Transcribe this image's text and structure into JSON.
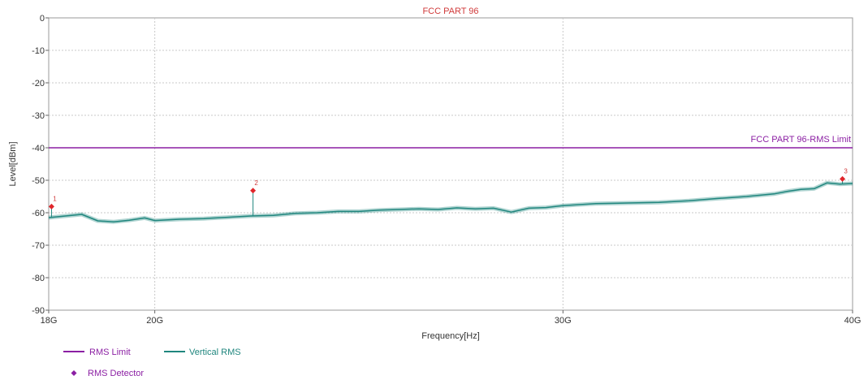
{
  "chart_data": {
    "type": "line",
    "title": "FCC PART 96",
    "xlabel": "Frequency[Hz]",
    "ylabel": "Level[dBm]",
    "xscale": "log",
    "xlim": [
      18,
      40
    ],
    "x_unit": "GHz",
    "ylim": [
      -90,
      0
    ],
    "x_ticks": [
      {
        "value": 18,
        "label": "18G"
      },
      {
        "value": 20,
        "label": "20G"
      },
      {
        "value": 30,
        "label": "30G"
      },
      {
        "value": 40,
        "label": "40G"
      }
    ],
    "y_ticks": [
      {
        "value": 0,
        "label": "0"
      },
      {
        "value": -10,
        "label": "-10"
      },
      {
        "value": -20,
        "label": "-20"
      },
      {
        "value": -30,
        "label": "-30"
      },
      {
        "value": -40,
        "label": "-40"
      },
      {
        "value": -50,
        "label": "-50"
      },
      {
        "value": -60,
        "label": "-60"
      },
      {
        "value": -70,
        "label": "-70"
      },
      {
        "value": -80,
        "label": "-80"
      },
      {
        "value": -90,
        "label": "-90"
      }
    ],
    "grid": true,
    "limit_line": {
      "value": -40,
      "label": "FCC PART 96-RMS Limit",
      "color": "#8b1fa3"
    },
    "series": [
      {
        "name": "Vertical RMS",
        "color": "#20867e",
        "x": [
          18.0,
          18.3,
          18.6,
          18.9,
          19.2,
          19.5,
          19.8,
          20.0,
          20.5,
          21.0,
          21.5,
          22.0,
          22.5,
          23.0,
          23.5,
          24.0,
          24.5,
          25.0,
          25.5,
          26.0,
          26.5,
          27.0,
          27.5,
          28.0,
          28.5,
          29.0,
          29.5,
          30.0,
          31.0,
          32.0,
          33.0,
          34.0,
          35.0,
          36.0,
          37.0,
          37.5,
          38.0,
          38.5,
          39.0,
          39.5,
          40.0
        ],
        "y": [
          -61.5,
          -61.0,
          -60.5,
          -62.5,
          -62.8,
          -62.3,
          -61.6,
          -62.4,
          -62.0,
          -61.8,
          -61.4,
          -61.0,
          -60.8,
          -60.2,
          -60.0,
          -59.6,
          -59.6,
          -59.2,
          -59.0,
          -58.8,
          -59.0,
          -58.5,
          -58.8,
          -58.6,
          -59.8,
          -58.6,
          -58.4,
          -57.8,
          -57.2,
          -57.0,
          -56.8,
          -56.3,
          -55.6,
          -55.0,
          -54.2,
          -53.4,
          -52.8,
          -52.6,
          -50.8,
          -51.2,
          -51.0
        ]
      }
    ],
    "markers": [
      {
        "label": "1",
        "x": 18.05,
        "y": -58.1
      },
      {
        "label": "2",
        "x": 22.05,
        "y": -53.2
      },
      {
        "label": "3",
        "x": 39.6,
        "y": -49.6
      }
    ],
    "legend": {
      "position": "bottom-left",
      "items": [
        {
          "label": "RMS Limit",
          "color": "#8b1fa3",
          "kind": "line"
        },
        {
          "label": "Vertical RMS",
          "color": "#20867e",
          "kind": "line"
        },
        {
          "label": "RMS Detector",
          "color": "#8b1fa3",
          "kind": "diamond"
        }
      ]
    }
  }
}
